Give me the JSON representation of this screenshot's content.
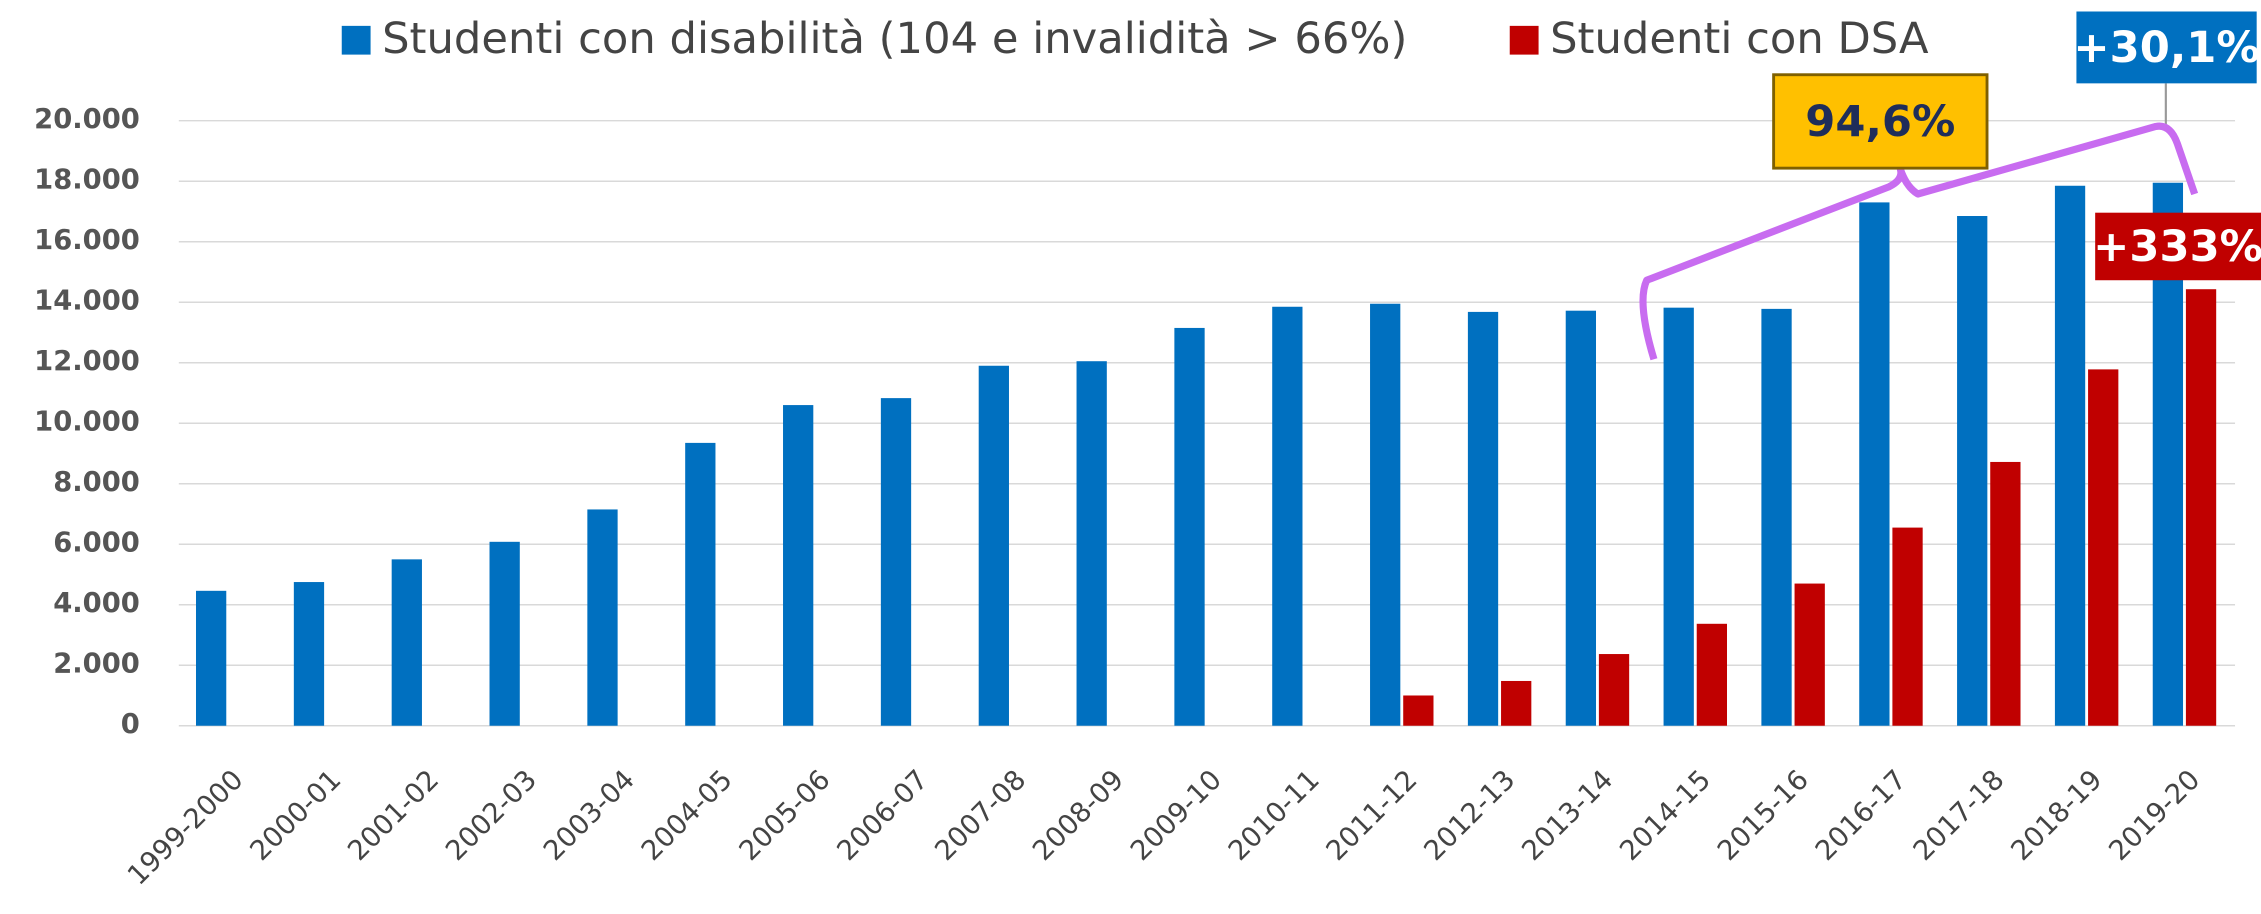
{
  "chart_data": {
    "type": "bar",
    "categories": [
      "1999-2000",
      "2000-01",
      "2001-02",
      "2002-03",
      "2003-04",
      "2004-05",
      "2005-06",
      "2006-07",
      "2007-08",
      "2008-09",
      "2009-10",
      "2010-11",
      "2011-12",
      "2012-13",
      "2013-14",
      "2014-15",
      "2015-16",
      "2016-17",
      "2017-18",
      "2018-19",
      "2019-20"
    ],
    "series": [
      {
        "name": "Studenti con disabilità (104 e invalidità > 66%)",
        "color": "#0070c0",
        "values": [
          4460,
          4750,
          5500,
          6080,
          7150,
          9350,
          10600,
          10830,
          11900,
          12050,
          13150,
          13850,
          13950,
          13680,
          13720,
          13820,
          13780,
          17300,
          16850,
          17850,
          17950
        ]
      },
      {
        "name": "Studenti con DSA",
        "color": "#c00000",
        "values": [
          null,
          null,
          null,
          null,
          null,
          null,
          null,
          null,
          null,
          null,
          null,
          null,
          1000,
          1480,
          2370,
          3370,
          4700,
          6550,
          8720,
          11780,
          14430
        ]
      }
    ],
    "ylim": [
      0,
      20000
    ],
    "yticks": [
      0,
      {
        "value": 2000,
        "label": "2.000"
      },
      {
        "value": 4000,
        "label": "4.000"
      },
      {
        "value": 6000,
        "label": "6.000"
      },
      {
        "value": 8000,
        "label": "8.000"
      },
      {
        "value": 10000,
        "label": "10.000"
      },
      {
        "value": 12000,
        "label": "12.000"
      },
      {
        "value": 14000,
        "label": "14.000"
      },
      {
        "value": 16000,
        "label": "16.000"
      },
      {
        "value": 18000,
        "label": "18.000"
      },
      {
        "value": 20000,
        "label": "20.000"
      }
    ],
    "grid": true,
    "annotations": [
      "94,6%",
      "+30,1%",
      "+333%"
    ]
  }
}
